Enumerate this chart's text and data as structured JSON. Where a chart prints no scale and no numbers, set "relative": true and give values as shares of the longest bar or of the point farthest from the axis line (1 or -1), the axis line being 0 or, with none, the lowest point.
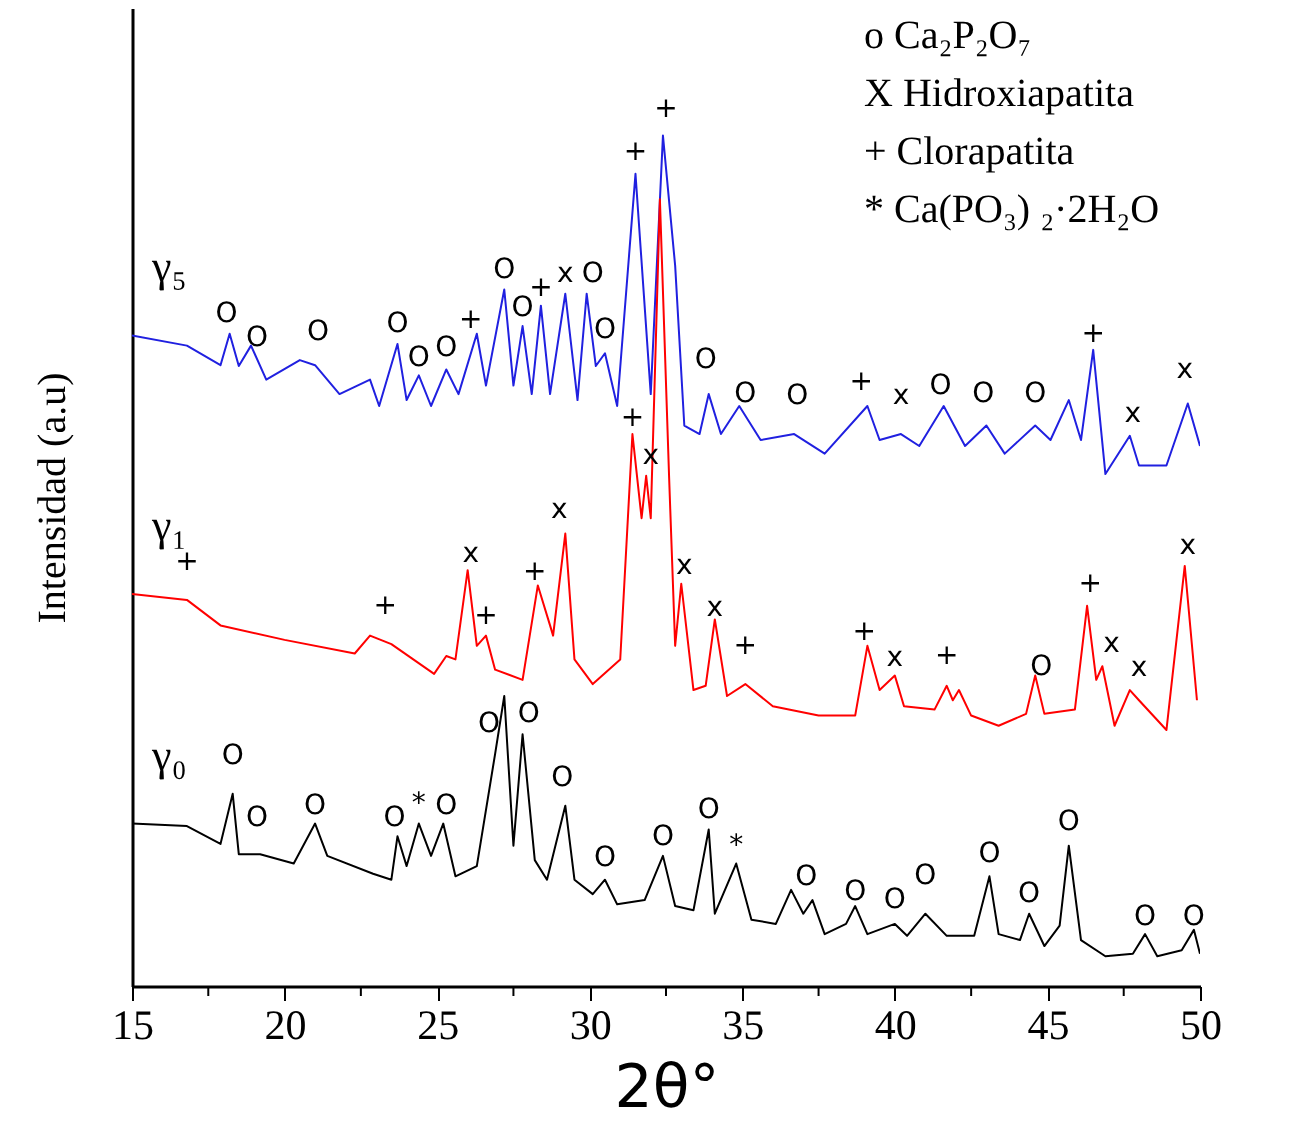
{
  "chart_data": {
    "type": "line",
    "xlabel": "2θ°",
    "ylabel": "Intensidad (a.u)",
    "relative": true,
    "xlim": [
      15,
      50
    ],
    "xticks": [
      15,
      {
        "value": 17.5,
        "label": null
      },
      20,
      {
        "value": 22.5,
        "label": null
      },
      25,
      {
        "value": 27.5,
        "label": null
      },
      30,
      {
        "value": 32.5,
        "label": null
      },
      35,
      {
        "value": 37.5,
        "label": null
      },
      40,
      {
        "value": 42.5,
        "label": null
      },
      45,
      {
        "value": 47.5,
        "label": null
      },
      50
    ],
    "series": [
      {
        "name": "γ₅",
        "color": "#2020e0",
        "x": [
          15.0,
          16.8,
          17.9,
          18.2,
          18.5,
          18.9,
          19.4,
          20.5,
          21.0,
          21.8,
          22.8,
          23.1,
          23.7,
          24.0,
          24.4,
          24.8,
          25.3,
          25.7,
          26.3,
          26.6,
          27.2,
          27.5,
          27.8,
          28.1,
          28.4,
          28.7,
          29.2,
          29.6,
          29.9,
          30.2,
          30.5,
          30.9,
          31.5,
          32.0,
          32.4,
          32.8,
          33.1,
          33.6,
          33.9,
          34.3,
          34.9,
          35.6,
          36.7,
          37.7,
          39.1,
          39.5,
          40.2,
          40.8,
          41.6,
          42.3,
          43.0,
          43.6,
          44.6,
          45.1,
          45.7,
          46.1,
          46.5,
          46.9,
          47.7,
          48.0,
          48.9,
          49.6,
          50.0
        ],
        "values": [
          0.765,
          0.753,
          0.73,
          0.767,
          0.729,
          0.753,
          0.713,
          0.736,
          0.73,
          0.696,
          0.713,
          0.682,
          0.755,
          0.689,
          0.718,
          0.682,
          0.725,
          0.696,
          0.767,
          0.706,
          0.819,
          0.706,
          0.776,
          0.696,
          0.8,
          0.696,
          0.814,
          0.689,
          0.814,
          0.729,
          0.744,
          0.682,
          0.955,
          0.696,
          1.0,
          0.847,
          0.659,
          0.649,
          0.696,
          0.649,
          0.682,
          0.642,
          0.649,
          0.626,
          0.682,
          0.642,
          0.649,
          0.635,
          0.682,
          0.635,
          0.659,
          0.626,
          0.659,
          0.642,
          0.689,
          0.642,
          0.748,
          0.602,
          0.647,
          0.612,
          0.612,
          0.685,
          0.635
        ]
      },
      {
        "name": "γ₁",
        "color": "#ff0000",
        "x": [
          15.0,
          16.8,
          17.9,
          20.0,
          22.3,
          22.8,
          23.5,
          24.9,
          25.3,
          25.6,
          26.0,
          26.3,
          26.6,
          26.9,
          27.8,
          28.3,
          28.7,
          28.8,
          29.2,
          29.5,
          30.1,
          31.0,
          31.4,
          31.7,
          31.85,
          32.0,
          32.3,
          32.6,
          32.8,
          33.0,
          33.4,
          33.8,
          34.1,
          34.5,
          35.1,
          36.0,
          37.5,
          38.7,
          39.1,
          39.5,
          40.0,
          40.3,
          41.3,
          41.7,
          41.9,
          42.1,
          42.5,
          43.4,
          44.3,
          44.6,
          44.9,
          45.9,
          46.3,
          46.6,
          46.8,
          47.2,
          47.7,
          48.0,
          48.9,
          49.5,
          49.9
        ],
        "values": [
          0.461,
          0.454,
          0.424,
          0.407,
          0.391,
          0.412,
          0.402,
          0.367,
          0.388,
          0.384,
          0.489,
          0.4,
          0.412,
          0.372,
          0.36,
          0.471,
          0.424,
          0.412,
          0.532,
          0.384,
          0.355,
          0.384,
          0.649,
          0.55,
          0.6,
          0.55,
          0.925,
          0.6,
          0.4,
          0.473,
          0.348,
          0.353,
          0.431,
          0.341,
          0.355,
          0.329,
          0.318,
          0.318,
          0.4,
          0.348,
          0.365,
          0.329,
          0.325,
          0.353,
          0.336,
          0.348,
          0.318,
          0.306,
          0.32,
          0.365,
          0.32,
          0.325,
          0.447,
          0.36,
          0.376,
          0.306,
          0.348,
          0.336,
          0.301,
          0.494,
          0.336
        ]
      },
      {
        "name": "γ₀",
        "color": "#000000",
        "x": [
          15.0,
          16.8,
          17.9,
          18.3,
          18.5,
          19.2,
          20.3,
          21.0,
          21.4,
          22.9,
          23.5,
          23.7,
          24.0,
          24.4,
          24.8,
          25.2,
          25.6,
          26.3,
          26.9,
          27.2,
          27.5,
          27.8,
          28.2,
          28.6,
          29.2,
          29.5,
          30.1,
          30.5,
          30.9,
          31.8,
          32.4,
          32.8,
          33.4,
          33.9,
          34.1,
          34.8,
          35.3,
          36.1,
          36.6,
          37.0,
          37.3,
          37.7,
          38.4,
          38.7,
          39.1,
          40.0,
          40.4,
          41.0,
          41.7,
          42.6,
          43.1,
          43.4,
          44.1,
          44.4,
          44.9,
          45.4,
          45.7,
          46.1,
          46.9,
          47.8,
          48.2,
          48.6,
          49.4,
          49.8,
          50.0
        ],
        "values": [
          0.191,
          0.188,
          0.167,
          0.226,
          0.155,
          0.155,
          0.144,
          0.191,
          0.153,
          0.132,
          0.125,
          0.176,
          0.141,
          0.191,
          0.153,
          0.191,
          0.129,
          0.141,
          0.273,
          0.341,
          0.165,
          0.296,
          0.148,
          0.125,
          0.212,
          0.125,
          0.108,
          0.125,
          0.096,
          0.101,
          0.153,
          0.094,
          0.089,
          0.184,
          0.085,
          0.144,
          0.078,
          0.073,
          0.113,
          0.085,
          0.101,
          0.061,
          0.073,
          0.094,
          0.061,
          0.073,
          0.059,
          0.085,
          0.059,
          0.059,
          0.129,
          0.061,
          0.054,
          0.085,
          0.047,
          0.071,
          0.165,
          0.054,
          0.035,
          0.038,
          0.061,
          0.035,
          0.042,
          0.066,
          0.038
        ]
      }
    ],
    "annotations": [
      "o Ca₂P₂O₇",
      "X Hidroxiapatita",
      "+ Clorapatita",
      "* Ca(PO₃) ₂·2H₂O",
      {
        "text": "O",
        "x": 18.1,
        "y": 0.745
      },
      {
        "text": "O",
        "x": 19.1,
        "y": 0.717
      },
      {
        "text": "O",
        "x": 21.1,
        "y": 0.724
      },
      {
        "text": "O",
        "x": 23.7,
        "y": 0.734
      },
      {
        "text": "O",
        "x": 24.4,
        "y": 0.694
      },
      {
        "text": "O",
        "x": 25.3,
        "y": 0.706
      },
      {
        "text": "+",
        "x": 26.1,
        "y": 0.739
      },
      {
        "text": "O",
        "x": 27.2,
        "y": 0.797
      },
      {
        "text": "O",
        "x": 27.8,
        "y": 0.753
      },
      {
        "text": "+",
        "x": 28.4,
        "y": 0.776
      },
      {
        "text": "x",
        "x": 29.2,
        "y": 0.793
      },
      {
        "text": "O",
        "x": 30.1,
        "y": 0.793
      },
      {
        "text": "O",
        "x": 30.5,
        "y": 0.727
      },
      {
        "text": "+",
        "x": 31.5,
        "y": 0.936
      },
      {
        "text": "+",
        "x": 32.5,
        "y": 0.986
      },
      {
        "text": "O",
        "x": 33.8,
        "y": 0.691
      },
      {
        "text": "O",
        "x": 35.1,
        "y": 0.651
      },
      {
        "text": "O",
        "x": 36.8,
        "y": 0.649
      },
      {
        "text": "+",
        "x": 38.9,
        "y": 0.666
      },
      {
        "text": "x",
        "x": 40.2,
        "y": 0.649
      },
      {
        "text": "O",
        "x": 41.5,
        "y": 0.661
      },
      {
        "text": "O",
        "x": 42.9,
        "y": 0.651
      },
      {
        "text": "O",
        "x": 44.6,
        "y": 0.651
      },
      {
        "text": "+",
        "x": 46.5,
        "y": 0.722
      },
      {
        "text": "x",
        "x": 47.8,
        "y": 0.628
      },
      {
        "text": "x",
        "x": 49.5,
        "y": 0.68
      },
      {
        "text": "+",
        "x": 16.8,
        "y": 0.454
      },
      {
        "text": "+",
        "x": 23.3,
        "y": 0.402
      },
      {
        "text": "x",
        "x": 26.1,
        "y": 0.463
      },
      {
        "text": "+",
        "x": 26.6,
        "y": 0.39
      },
      {
        "text": "+",
        "x": 28.2,
        "y": 0.442
      },
      {
        "text": "x",
        "x": 29.0,
        "y": 0.515
      },
      {
        "text": "+",
        "x": 31.4,
        "y": 0.623
      },
      {
        "text": "x",
        "x": 32.0,
        "y": 0.579
      },
      {
        "text": "x",
        "x": 33.1,
        "y": 0.449
      },
      {
        "text": "x",
        "x": 34.1,
        "y": 0.4
      },
      {
        "text": "+",
        "x": 35.1,
        "y": 0.355
      },
      {
        "text": "+",
        "x": 39.0,
        "y": 0.371
      },
      {
        "text": "x",
        "x": 40.0,
        "y": 0.341
      },
      {
        "text": "+",
        "x": 41.7,
        "y": 0.343
      },
      {
        "text": "O",
        "x": 44.8,
        "y": 0.331
      },
      {
        "text": "+",
        "x": 46.4,
        "y": 0.428
      },
      {
        "text": "x",
        "x": 47.1,
        "y": 0.357
      },
      {
        "text": "x",
        "x": 48.0,
        "y": 0.329
      },
      {
        "text": "x",
        "x": 49.6,
        "y": 0.473
      },
      {
        "text": "O",
        "x": 18.3,
        "y": 0.226
      },
      {
        "text": "O",
        "x": 19.1,
        "y": 0.153
      },
      {
        "text": "O",
        "x": 21.0,
        "y": 0.167
      },
      {
        "text": "O",
        "x": 23.6,
        "y": 0.153
      },
      {
        "text": "*",
        "x": 24.4,
        "y": 0.169
      },
      {
        "text": "O",
        "x": 25.3,
        "y": 0.167
      },
      {
        "text": "O",
        "x": 26.7,
        "y": 0.263
      },
      {
        "text": "O",
        "x": 28.0,
        "y": 0.275
      },
      {
        "text": "O",
        "x": 29.1,
        "y": 0.2
      },
      {
        "text": "O",
        "x": 30.5,
        "y": 0.106
      },
      {
        "text": "O",
        "x": 32.4,
        "y": 0.131
      },
      {
        "text": "O",
        "x": 33.9,
        "y": 0.162
      },
      {
        "text": "*",
        "x": 34.8,
        "y": 0.12
      },
      {
        "text": "O",
        "x": 37.1,
        "y": 0.084
      },
      {
        "text": "O",
        "x": 38.7,
        "y": 0.066
      },
      {
        "text": "O",
        "x": 40.0,
        "y": 0.056
      },
      {
        "text": "O",
        "x": 41.0,
        "y": 0.085
      },
      {
        "text": "O",
        "x": 43.1,
        "y": 0.11
      },
      {
        "text": "O",
        "x": 44.4,
        "y": 0.063
      },
      {
        "text": "O",
        "x": 45.7,
        "y": 0.148
      },
      {
        "text": "O",
        "x": 48.2,
        "y": 0.037
      },
      {
        "text": "O",
        "x": 49.8,
        "y": 0.037
      }
    ]
  }
}
